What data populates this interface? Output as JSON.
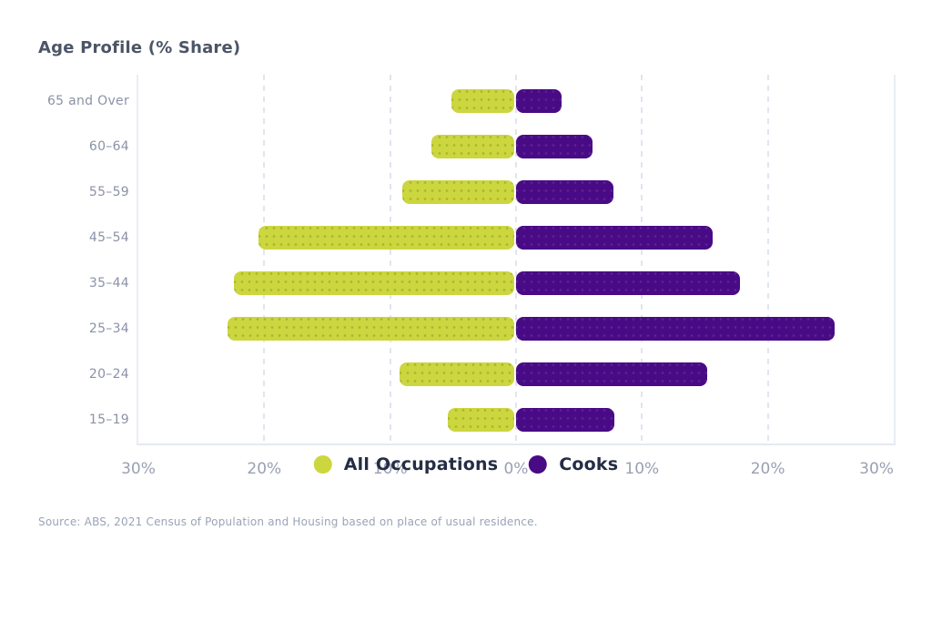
{
  "page": {
    "title": "Age Profile (% Share)",
    "source": "Source: ABS, 2021 Census of Population and Housing based on place of usual residence."
  },
  "legend": [
    {
      "label": "All Occupations",
      "color": "#ccd63e"
    },
    {
      "label": "Cooks",
      "color": "#480a85"
    }
  ],
  "theme": {
    "background": "#ffffff",
    "title_color": "#4c5566",
    "axis_label_color": "#8b92a6",
    "tick_label_color": "#99a0b2",
    "legend_text_color": "#242d44",
    "gridline_color": "#e0e5ef",
    "series_all_occupations": "#ccd63e",
    "series_cooks": "#480a85"
  },
  "chart_data": {
    "type": "bar",
    "variant": "horizontal-population-pyramid",
    "title": "Age Profile (% Share)",
    "xlabel": "",
    "ylabel": "",
    "unit": "%",
    "category_order": "top-to-bottom",
    "categories": [
      "65 and Over",
      "60–64",
      "55–59",
      "45–54",
      "35–44",
      "25–34",
      "20–24",
      "15–19"
    ],
    "series": [
      {
        "name": "All Occupations",
        "side": "left",
        "color": "#ccd63e",
        "values": [
          5.0,
          6.6,
          8.9,
          20.3,
          22.3,
          22.8,
          9.1,
          5.3
        ]
      },
      {
        "name": "Cooks",
        "side": "right",
        "color": "#480a85",
        "values": [
          3.6,
          6.1,
          7.7,
          15.6,
          17.8,
          25.3,
          15.2,
          7.8
        ]
      }
    ],
    "x_axis": {
      "tick_values": [
        -30,
        -20,
        -10,
        0,
        10,
        20,
        30
      ],
      "tick_labels": [
        "30%",
        "20%",
        "10%",
        "0%",
        "10%",
        "20%",
        "30%"
      ]
    },
    "xlim": [
      -30,
      30
    ],
    "grid": "vertical-dashed",
    "legend_position": "bottom-center"
  }
}
